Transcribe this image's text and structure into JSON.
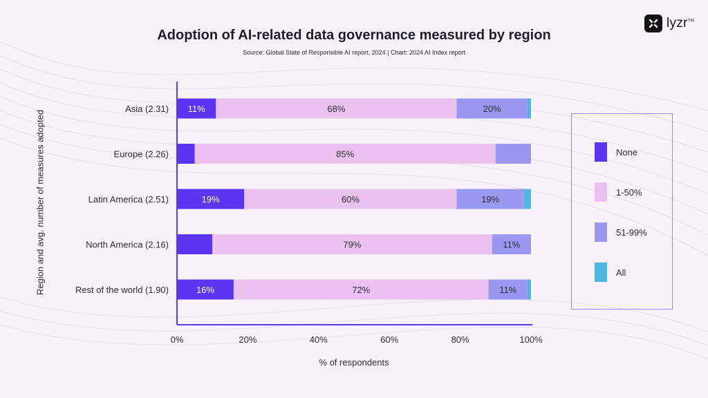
{
  "title": "Adoption of AI-related data governance measured by region",
  "subtitle": "Source: Global State of Responsible AI report, 2024 | Chart: 2024 AI Index report",
  "logo": {
    "text": "lyzr",
    "mark": "TM"
  },
  "colors": {
    "None": "#5b35f0",
    "1-50%": "#ebc1ef",
    "51-99%": "#9a98f0",
    "All": "#4fb6e0",
    "axis": "#5b35f0"
  },
  "chart_data": {
    "type": "bar",
    "orientation": "horizontal",
    "stacked": true,
    "title": "Adoption of AI-related data governance measured by region",
    "xlabel": "% of respondents",
    "ylabel": "Region and avg. number of measures adopted",
    "xlim": [
      0,
      100
    ],
    "xticks": [
      "0%",
      "20%",
      "40%",
      "60%",
      "80%",
      "100%"
    ],
    "categories": [
      "Asia (2.31)",
      "Europe (2.26)",
      "Latin America (2.51)",
      "North America (2.16)",
      "Rest of the world (1.90)"
    ],
    "series": [
      {
        "name": "None",
        "values": [
          11,
          5,
          19,
          10,
          16
        ],
        "labels": [
          "11%",
          "",
          "19%",
          "",
          "16%"
        ]
      },
      {
        "name": "1-50%",
        "values": [
          68,
          85,
          60,
          79,
          72
        ],
        "labels": [
          "68%",
          "85%",
          "60%",
          "79%",
          "72%"
        ]
      },
      {
        "name": "51-99%",
        "values": [
          20,
          10,
          19,
          11,
          11
        ],
        "labels": [
          "20%",
          "",
          "19%",
          "11%",
          "11%"
        ]
      },
      {
        "name": "All",
        "values": [
          1,
          0,
          2,
          0,
          1
        ],
        "labels": [
          "",
          "",
          "",
          "",
          ""
        ]
      }
    ],
    "legend_position": "right",
    "grid": false
  }
}
